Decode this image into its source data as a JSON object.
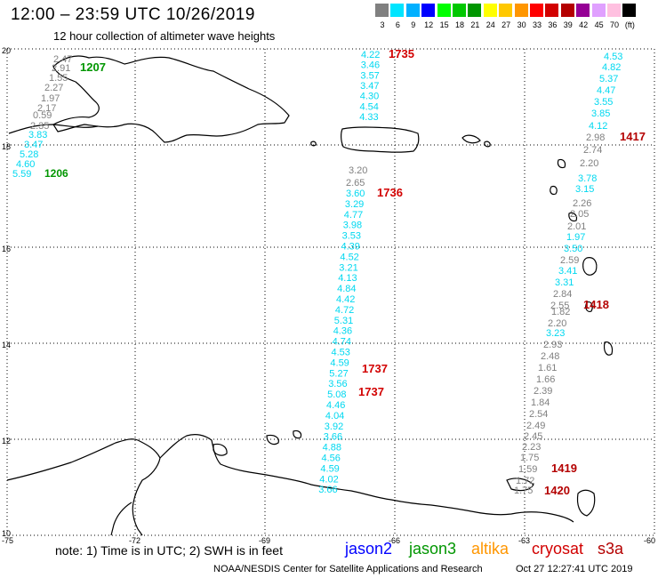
{
  "title": "12:00 – 23:59 UTC 10/26/2019",
  "subtitle": "12 hour collection of altimeter wave heights",
  "scale": {
    "labels": [
      "3",
      "6",
      "9",
      "12",
      "15",
      "18",
      "21",
      "24",
      "27",
      "30",
      "33",
      "36",
      "39",
      "42",
      "45",
      "70",
      "(ft)"
    ],
    "colors": [
      "#808080",
      "#00e5ff",
      "#00b0ff",
      "#0000ff",
      "#00ff00",
      "#00c800",
      "#009600",
      "#ffff00",
      "#ffc800",
      "#ff9600",
      "#ff0000",
      "#d20000",
      "#b40000",
      "#960096",
      "#e0a0ff",
      "#ffc0e0",
      "#000000"
    ]
  },
  "axes": {
    "lon_labels": [
      "-75",
      "-72",
      "-69",
      "-66",
      "-63",
      "-60"
    ],
    "lat_labels": [
      "20",
      "18",
      "16",
      "14",
      "12",
      "10"
    ]
  },
  "chart_data": {
    "type": "map",
    "tracks": [
      {
        "satellite": "jason2",
        "color": "#00d8f0",
        "times": [],
        "values": [
          "5.59",
          "4.60",
          "5.28",
          "3.47",
          "3.83"
        ]
      },
      {
        "satellite": "jason3",
        "color": "#009600",
        "times": [
          "1206"
        ],
        "values": []
      },
      {
        "satellite": "pass-1207",
        "color": "#808080",
        "times": [
          "1207"
        ],
        "values": [
          "2.47",
          "2.91",
          "1.55",
          "2.27",
          "1.97",
          "2.17",
          "0.59",
          "2.35"
        ]
      },
      {
        "satellite": "pass-1735-1737",
        "color": "#00d8f0",
        "times": [
          "1735",
          "1736",
          "1737",
          "1737"
        ],
        "values": [
          "4.22",
          "3.46",
          "3.57",
          "3.47",
          "4.30",
          "4.54",
          "4.33",
          "3.60",
          "3.29",
          "4.77",
          "3.98",
          "3.53",
          "4.39",
          "4.52",
          "3.21",
          "4.13",
          "4.84",
          "4.42",
          "4.72",
          "5.31",
          "4.36",
          "4.74",
          "4.53",
          "4.59",
          "5.27",
          "3.56",
          "5.08",
          "4.46",
          "4.04",
          "3.92",
          "3.66",
          "4.88",
          "4.56",
          "4.59",
          "4.02",
          "3.66"
        ]
      },
      {
        "satellite": "pass-1735-gray",
        "color": "#808080",
        "times": [],
        "values": [
          "3.20",
          "2.65"
        ]
      },
      {
        "satellite": "pass-1417-1420",
        "color": "#808080",
        "times": [
          "1417",
          "1418",
          "1419",
          "1420"
        ],
        "values": [
          "2.98",
          "2.74",
          "2.20",
          "2.26",
          "2.05",
          "2.01",
          "2.59",
          "2.84",
          "2.55",
          "1.82",
          "2.20",
          "2.93",
          "2.48",
          "1.61",
          "1.66",
          "2.39",
          "1.84",
          "2.54",
          "2.49",
          "2.45",
          "2.23",
          "1.75",
          "1.59",
          "1.72",
          "1.75"
        ]
      },
      {
        "satellite": "pass-1417-cyan",
        "color": "#00d8f0",
        "times": [],
        "values": [
          "4.53",
          "4.82",
          "5.37",
          "4.47",
          "3.55",
          "3.85",
          "4.12",
          "3.78",
          "3.15",
          "1.97",
          "3.50",
          "3.41",
          "3.31",
          "3.23"
        ]
      }
    ]
  },
  "labels": {
    "t1735": "1735",
    "t1736": "1736",
    "t1737a": "1737",
    "t1737b": "1737",
    "t1417": "1417",
    "t1418": "1418",
    "t1419": "1419",
    "t1420": "1420",
    "t1206": "1206",
    "t1207": "1207"
  },
  "note": "note: 1) Time is in UTC; 2) SWH is in feet",
  "legend": [
    {
      "name": "jason2",
      "color": "#0000ff"
    },
    {
      "name": "jason3",
      "color": "#009600"
    },
    {
      "name": "altika",
      "color": "#ff9600"
    },
    {
      "name": "cryosat",
      "color": "#d20000"
    },
    {
      "name": "s3a",
      "color": "#b40000"
    }
  ],
  "footer_center": "NOAA/NESDIS Center for Satellite Applications and Research",
  "footer_right": "Oct 27 12:27:41 UTC 2019"
}
